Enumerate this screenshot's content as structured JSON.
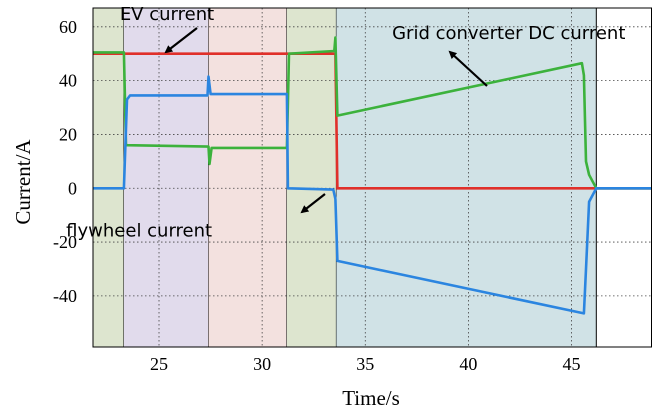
{
  "chart_data": {
    "type": "line",
    "xlabel": "Time/s",
    "ylabel": "Current/A",
    "xlim": [
      21.8,
      48.9
    ],
    "ylim": [
      -59,
      67
    ],
    "xticks": [
      25,
      30,
      35,
      40,
      45
    ],
    "yticks": [
      60,
      40,
      20,
      0,
      -20,
      -40
    ],
    "xtick_labels": [
      "25",
      "30",
      "35",
      "40",
      "45"
    ],
    "ytick_labels": [
      "60",
      "40",
      "20",
      "0",
      "-20",
      "-40"
    ],
    "grid": true,
    "legend": "none",
    "regions": [
      {
        "x": [
          21.8,
          23.3
        ],
        "color": "#dde5cf"
      },
      {
        "x": [
          23.3,
          27.4
        ],
        "color": "#e1dbec"
      },
      {
        "x": [
          27.4,
          31.2
        ],
        "color": "#f3e1df"
      },
      {
        "x": [
          31.2,
          33.6
        ],
        "color": "#dde5cf"
      },
      {
        "x": [
          33.6,
          46.2
        ],
        "color": "#d0e2e6"
      }
    ],
    "series": [
      {
        "name": "EV current",
        "color": "#e0302a",
        "points": [
          [
            21.8,
            50
          ],
          [
            33.55,
            50
          ],
          [
            33.65,
            0
          ],
          [
            48.9,
            0
          ]
        ]
      },
      {
        "name": "Grid converter DC current",
        "color": "#3cb23c",
        "points": [
          [
            21.8,
            50.5
          ],
          [
            23.3,
            50.5
          ],
          [
            23.4,
            16
          ],
          [
            27.4,
            15.5
          ],
          [
            27.45,
            9
          ],
          [
            27.55,
            15
          ],
          [
            31.2,
            15
          ],
          [
            31.3,
            50
          ],
          [
            33.5,
            51
          ],
          [
            33.55,
            56
          ],
          [
            33.65,
            27
          ],
          [
            45.5,
            46.5
          ],
          [
            45.6,
            42
          ],
          [
            45.7,
            10
          ],
          [
            45.85,
            5
          ],
          [
            46.2,
            0
          ],
          [
            48.9,
            0
          ]
        ]
      },
      {
        "name": "flywheel current",
        "color": "#2b85e0",
        "points": [
          [
            21.8,
            0
          ],
          [
            23.3,
            0
          ],
          [
            23.45,
            33
          ],
          [
            23.6,
            34.5
          ],
          [
            27.35,
            34.5
          ],
          [
            27.4,
            41.5
          ],
          [
            27.5,
            35
          ],
          [
            31.2,
            35
          ],
          [
            31.25,
            0
          ],
          [
            33.45,
            -0.5
          ],
          [
            33.55,
            -4
          ],
          [
            33.65,
            -27
          ],
          [
            45.6,
            -46.5
          ],
          [
            45.7,
            -30
          ],
          [
            45.85,
            -5
          ],
          [
            46.2,
            0
          ],
          [
            48.9,
            0
          ]
        ]
      }
    ],
    "annotations": [
      {
        "text": "EV current",
        "x": 23.1,
        "y": 62.5,
        "arrow_to": [
          22.5,
          50
        ]
      },
      {
        "text": "Grid converter DC current",
        "x": 36.3,
        "y": 55.5,
        "arrow_to": [
          35.6,
          51.5
        ]
      },
      {
        "text": "flywheel current",
        "x": 20.5,
        "y": -18,
        "arrow_to": [
          21.5,
          -2.5
        ]
      }
    ]
  }
}
